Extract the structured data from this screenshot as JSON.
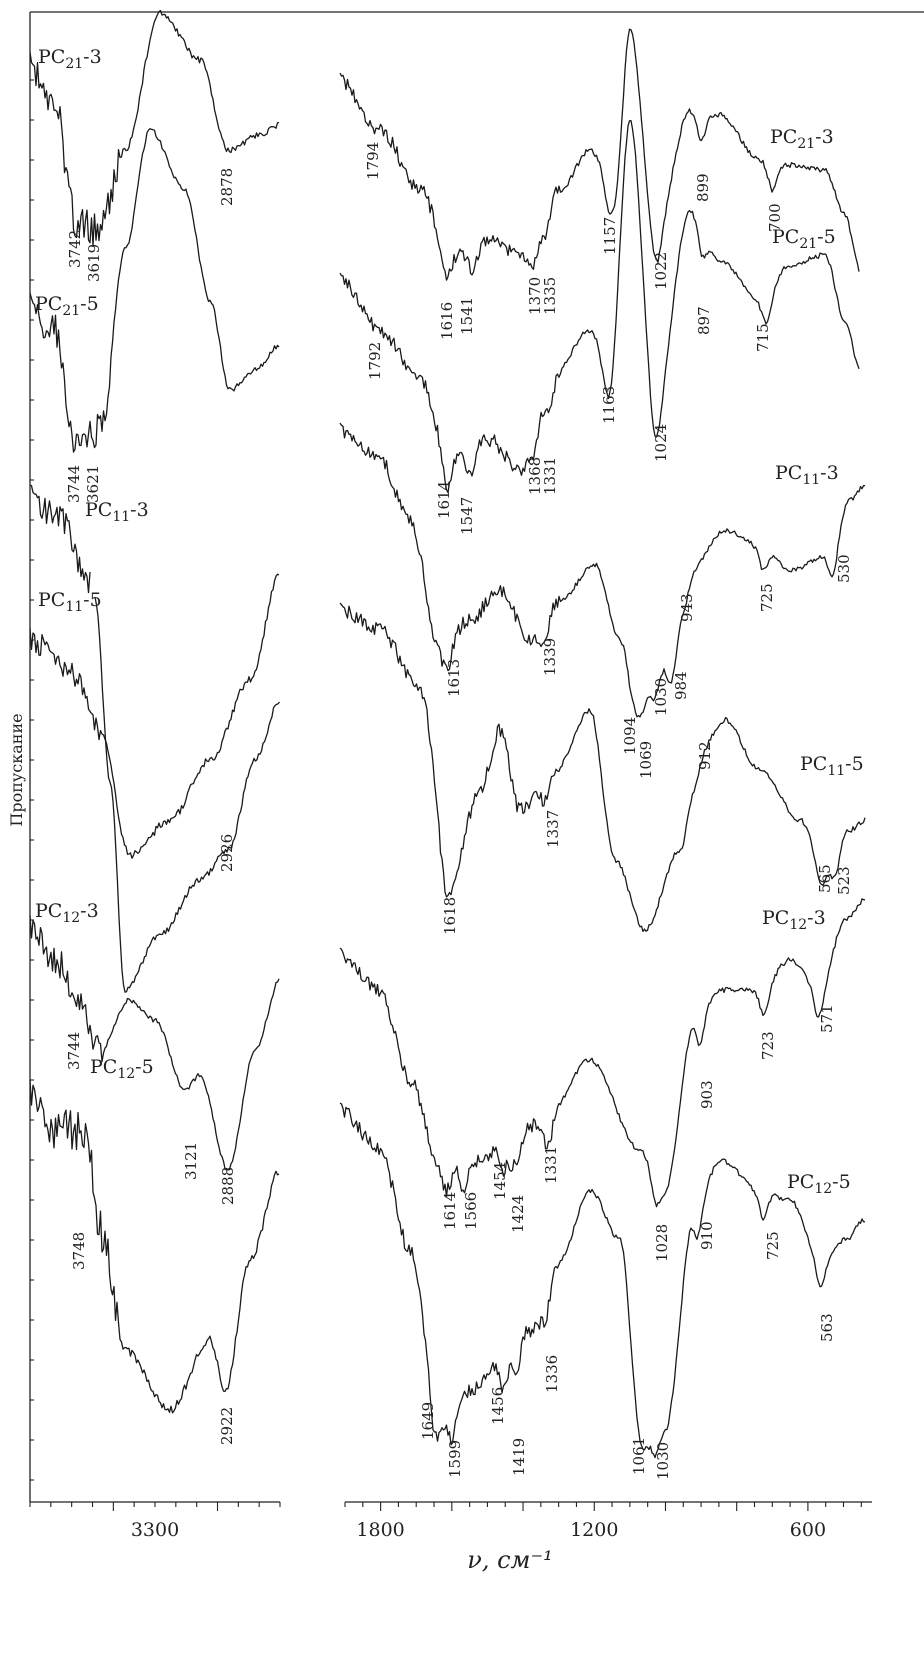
{
  "chart_data": {
    "type": "line",
    "ylabel": "Пропускание",
    "xlabel": "ν, см⁻¹",
    "panels": [
      {
        "name": "left",
        "xlim": [
          3900,
          2700
        ],
        "x_ticks": [
          3300
        ],
        "tick_labels": [
          "3300"
        ]
      },
      {
        "name": "right",
        "xlim": [
          1900,
          420
        ],
        "x_ticks": [
          1800,
          1200,
          600
        ],
        "tick_labels": [
          "1800",
          "1200",
          "600"
        ]
      }
    ],
    "series": [
      {
        "name": "PC21-3",
        "label_main": "PC",
        "label_sub": "21",
        "label_tail": "-3",
        "left_peaks": [
          3742,
          3619,
          2878
        ],
        "left_peak_labels": [
          "3742",
          "3619",
          "2878"
        ],
        "right_peaks": [
          1794,
          1616,
          1541,
          1370,
          1335,
          1157,
          1022,
          899,
          700
        ],
        "right_peak_labels": [
          "1794",
          "1616",
          "1541",
          "1370",
          "1335",
          "1157",
          "1022",
          "899",
          "700"
        ]
      },
      {
        "name": "PC21-5",
        "label_main": "PC",
        "label_sub": "21",
        "label_tail": "-5",
        "left_peaks": [
          3744,
          3621
        ],
        "left_peak_labels": [
          "3744",
          "3621"
        ],
        "right_peaks": [
          1792,
          1614,
          1547,
          1368,
          1331,
          1163,
          1024,
          897,
          715
        ],
        "right_peak_labels": [
          "1792",
          "1614",
          "1547",
          "1368",
          "1331",
          "1163",
          "1024",
          "897",
          "715"
        ]
      },
      {
        "name": "PC11-3",
        "label_main": "PC",
        "label_sub": "11",
        "label_tail": "-3",
        "left_peaks": [],
        "left_peak_labels": [],
        "right_peaks": [
          1613,
          1339,
          1094,
          1069,
          1030,
          984,
          943,
          725,
          530
        ],
        "right_peak_labels": [
          "1613",
          "1339",
          "1094",
          "1069",
          "1030",
          "984",
          "943",
          "725",
          "530"
        ]
      },
      {
        "name": "PC11-5",
        "label_main": "PC",
        "label_sub": "11",
        "label_tail": "-5",
        "left_peaks": [
          2926
        ],
        "left_peak_labels": [
          "2926"
        ],
        "right_peaks": [
          1618,
          1337,
          912,
          565,
          523
        ],
        "right_peak_labels": [
          "1618",
          "1337",
          "912",
          "565",
          "523"
        ]
      },
      {
        "name": "PC12-3",
        "label_main": "PC",
        "label_sub": "12",
        "label_tail": "-3",
        "left_peaks": [
          3744,
          3121,
          2888
        ],
        "left_peak_labels": [
          "3744",
          "3121",
          "2888"
        ],
        "right_peaks": [
          1614,
          1566,
          1454,
          1424,
          1331,
          1028,
          903,
          723,
          571
        ],
        "right_peak_labels": [
          "1614",
          "1566",
          "1454",
          "1424",
          "1331",
          "1028",
          "903",
          "723",
          "571"
        ]
      },
      {
        "name": "PC12-5",
        "label_main": "PC",
        "label_sub": "12",
        "label_tail": "-5",
        "left_peaks": [
          3748,
          2922
        ],
        "left_peak_labels": [
          "3748",
          "2922"
        ],
        "right_peaks": [
          1649,
          1599,
          1456,
          1419,
          1336,
          1061,
          1030,
          910,
          725,
          563
        ],
        "right_peak_labels": [
          "1649",
          "1599",
          "1456",
          "1419",
          "1336",
          "1061",
          "1030",
          "910",
          "725",
          "563"
        ]
      }
    ]
  }
}
